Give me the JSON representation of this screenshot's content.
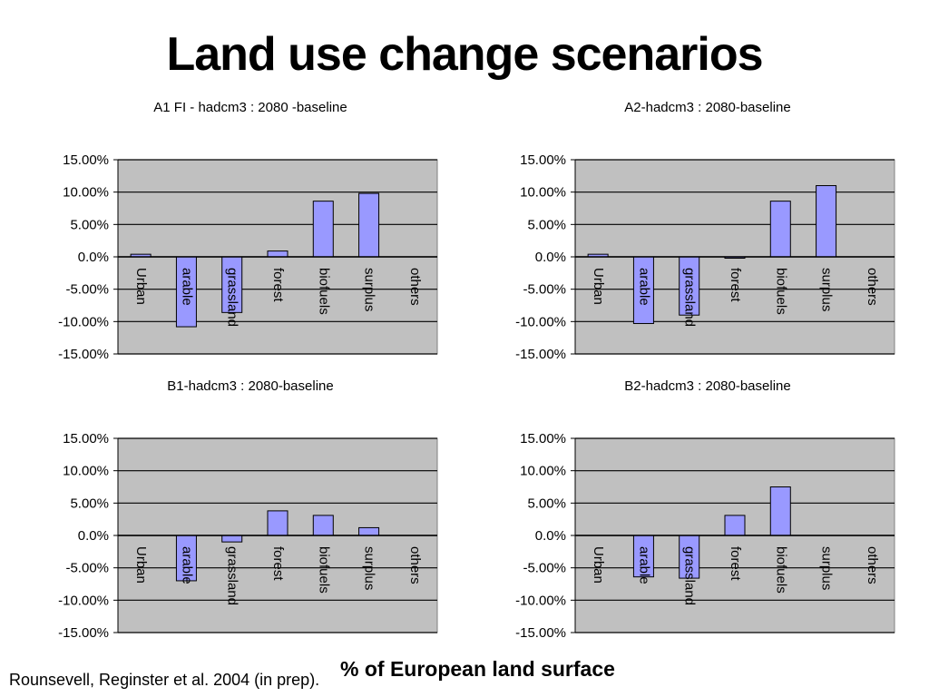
{
  "slide": {
    "title": "Land use change scenarios",
    "xlabel": "% of European land surface",
    "source": "Rounsevell, Reginster et al. 2004 (in prep)."
  },
  "colors": {
    "plot_bg": "#c0c0c0",
    "bar_fill": "#9999ff",
    "bar_stroke": "#000000"
  },
  "chart_data": [
    {
      "type": "bar",
      "title": "A1 FI - hadcm3 : 2080 -baseline",
      "categories": [
        "Urban",
        "arable",
        "grassland",
        "forest",
        "biofuels",
        "surplus",
        "others"
      ],
      "values": [
        0.4,
        -10.8,
        -8.6,
        0.9,
        8.6,
        9.8,
        0.0
      ],
      "ylim": [
        -15,
        15
      ],
      "yticks": [
        "15.00%",
        "10.00%",
        "5.00%",
        "0.0%",
        "-5.00%",
        "-10.00%",
        "-15.00%"
      ],
      "grid": true,
      "legend": "none"
    },
    {
      "type": "bar",
      "title": "A2-hadcm3 : 2080-baseline",
      "categories": [
        "Urban",
        "arable",
        "grassland",
        "forest",
        "biofuels",
        "surplus",
        "others"
      ],
      "values": [
        0.4,
        -10.3,
        -9.0,
        -0.2,
        8.6,
        11.0,
        0.0
      ],
      "ylim": [
        -15,
        15
      ],
      "yticks": [
        "15.00%",
        "10.00%",
        "5.00%",
        "0.0%",
        "-5.00%",
        "-10.00%",
        "-15.00%"
      ],
      "grid": true,
      "legend": "none"
    },
    {
      "type": "bar",
      "title": "B1-hadcm3 : 2080-baseline",
      "categories": [
        "Urban",
        "arable",
        "grassland",
        "forest",
        "biofuels",
        "surplus",
        "others"
      ],
      "values": [
        0.0,
        -7.0,
        -1.0,
        3.8,
        3.1,
        1.2,
        0.0
      ],
      "ylim": [
        -15,
        15
      ],
      "yticks": [
        "15.00%",
        "10.00%",
        "5.00%",
        "0.0%",
        "-5.00%",
        "-10.00%",
        "-15.00%"
      ],
      "grid": true,
      "legend": "none"
    },
    {
      "type": "bar",
      "title": "B2-hadcm3 : 2080-baseline",
      "categories": [
        "Urban",
        "arable",
        "grassland",
        "forest",
        "biofuels",
        "surplus",
        "others"
      ],
      "values": [
        0.0,
        -6.4,
        -6.6,
        3.1,
        7.5,
        0.0,
        0.0
      ],
      "ylim": [
        -15,
        15
      ],
      "yticks": [
        "15.00%",
        "10.00%",
        "5.00%",
        "0.0%",
        "-5.00%",
        "-10.00%",
        "-15.00%"
      ],
      "grid": true,
      "legend": "none"
    }
  ]
}
